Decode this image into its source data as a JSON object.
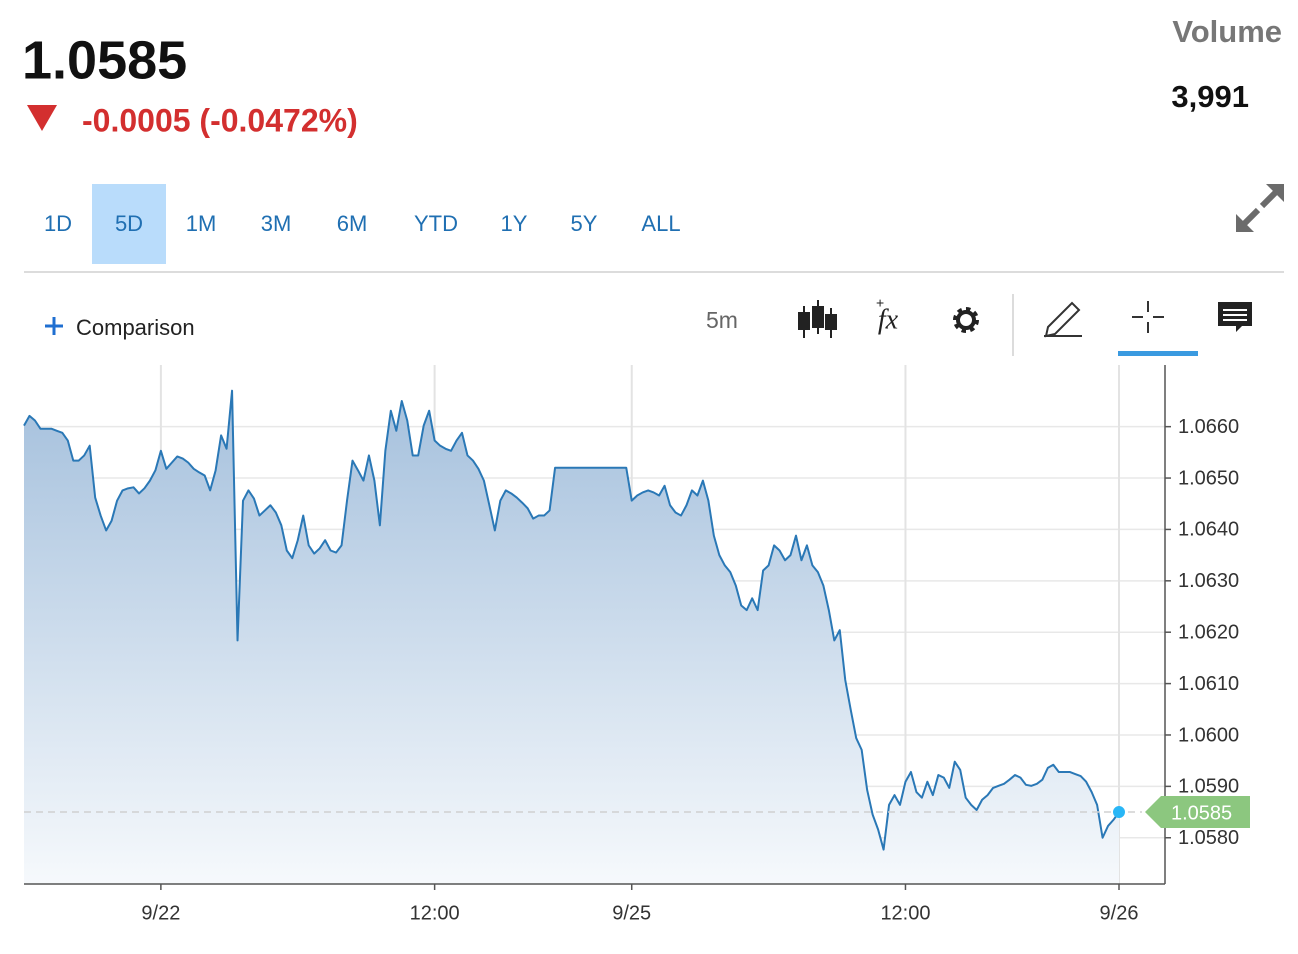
{
  "header": {
    "price": "1.0585",
    "change": "-0.0005 (-0.0472%)",
    "volume_label": "Volume",
    "volume": "3,991"
  },
  "range_tabs": [
    "1D",
    "5D",
    "1M",
    "3M",
    "6M",
    "YTD",
    "1Y",
    "5Y",
    "ALL"
  ],
  "selected_range": "5D",
  "toolbar": {
    "comparison": "Comparison",
    "interval": "5m",
    "function_icon": "fx"
  },
  "chart_data": {
    "type": "line",
    "area": true,
    "color": "#2a78b6",
    "grid": true,
    "categories": [
      null,
      null,
      null,
      null,
      null,
      null,
      null,
      null,
      null,
      null,
      null,
      null,
      null,
      null,
      null,
      null,
      null,
      null,
      null,
      null,
      null,
      null,
      null,
      null,
      null,
      "9/22",
      null,
      null,
      null,
      null,
      null,
      null,
      null,
      null,
      null,
      null,
      null,
      null,
      null,
      null,
      null,
      null,
      null,
      null,
      null,
      null,
      null,
      null,
      null,
      null,
      null,
      null,
      null,
      null,
      null,
      null,
      null,
      null,
      null,
      null,
      null,
      null,
      null,
      null,
      null,
      null,
      null,
      null,
      null,
      null,
      null,
      null,
      null,
      null,
      null,
      "12:00",
      null,
      null,
      null,
      null,
      null,
      null,
      null,
      null,
      null,
      null,
      null,
      null,
      null,
      null,
      null,
      null,
      null,
      null,
      null,
      null,
      null,
      null,
      null,
      null,
      null,
      null,
      null,
      null,
      null,
      null,
      null,
      null,
      null,
      null,
      null,
      "9/25",
      null,
      null,
      null,
      null,
      null,
      null,
      null,
      null,
      null,
      null,
      null,
      null,
      null,
      null,
      null,
      null,
      null,
      null,
      null,
      null,
      null,
      null,
      null,
      null,
      null,
      null,
      null,
      null,
      null,
      null,
      null,
      null,
      null,
      null,
      null,
      null,
      null,
      null,
      null,
      null,
      null,
      null,
      null,
      null,
      null,
      null,
      null,
      null,
      null,
      "12:00",
      null,
      null,
      null,
      null,
      null,
      null,
      null,
      null,
      null,
      null,
      null,
      null,
      null,
      null,
      null,
      null,
      null,
      null,
      null,
      null,
      null,
      null,
      null,
      null,
      null,
      null,
      null,
      null,
      null,
      null,
      null,
      null,
      null,
      null,
      null,
      null,
      null,
      null,
      "9/26"
    ],
    "values": [
      1.06602,
      1.06621,
      1.06612,
      1.06596,
      1.06596,
      1.06596,
      1.06592,
      1.06588,
      1.06573,
      1.06534,
      1.06534,
      1.06544,
      1.06563,
      1.06462,
      1.06427,
      1.06398,
      1.06417,
      1.06456,
      1.06476,
      1.0648,
      1.06482,
      1.0647,
      1.0648,
      1.06495,
      1.06515,
      1.06553,
      1.06518,
      1.0653,
      1.06542,
      1.06538,
      1.0653,
      1.06518,
      1.06511,
      1.06505,
      1.06476,
      1.06515,
      1.06583,
      1.06557,
      1.0667,
      1.06184,
      1.06456,
      1.06476,
      1.0646,
      1.06427,
      1.06437,
      1.06447,
      1.06433,
      1.06408,
      1.06359,
      1.06344,
      1.06379,
      1.06427,
      1.06369,
      1.06353,
      1.06363,
      1.06379,
      1.06359,
      1.06355,
      1.06369,
      1.06456,
      1.06534,
      1.06515,
      1.06495,
      1.06544,
      1.06495,
      1.06408,
      1.06553,
      1.06631,
      1.06592,
      1.0665,
      1.06612,
      1.06544,
      1.06544,
      1.06602,
      1.06631,
      1.06573,
      1.06563,
      1.06557,
      1.06553,
      1.06573,
      1.06588,
      1.06544,
      1.06534,
      1.06518,
      1.06495,
      1.06447,
      1.06398,
      1.06456,
      1.06476,
      1.0647,
      1.06462,
      1.06452,
      1.06441,
      1.06421,
      1.06427,
      1.06427,
      1.06437,
      1.0652,
      1.0652,
      1.0652,
      1.0652,
      1.0652,
      1.0652,
      1.0652,
      1.0652,
      1.0652,
      1.0652,
      1.0652,
      1.0652,
      1.0652,
      1.0652,
      1.06456,
      1.06466,
      1.06472,
      1.06476,
      1.06472,
      1.06466,
      1.06485,
      1.06447,
      1.06433,
      1.06427,
      1.06447,
      1.06476,
      1.06466,
      1.06495,
      1.06456,
      1.06388,
      1.0635,
      1.0633,
      1.06317,
      1.06291,
      1.06252,
      1.06243,
      1.06266,
      1.06243,
      1.0632,
      1.0633,
      1.06369,
      1.06359,
      1.0634,
      1.0635,
      1.06388,
      1.0634,
      1.06369,
      1.0633,
      1.06317,
      1.06291,
      1.06243,
      1.06184,
      1.06204,
      1.06107,
      1.06049,
      1.05994,
      1.05971,
      1.05893,
      1.05845,
      1.05816,
      1.05777,
      1.05864,
      1.05883,
      1.05864,
      1.05909,
      1.05928,
      1.05889,
      1.05878,
      1.05909,
      1.05883,
      1.05922,
      1.05917,
      1.05897,
      1.05948,
      1.05932,
      1.05878,
      1.05864,
      1.05854,
      1.05874,
      1.05883,
      1.05897,
      1.05901,
      1.05905,
      1.05913,
      1.05922,
      1.05917,
      1.05903,
      1.05901,
      1.05905,
      1.05913,
      1.05936,
      1.05942,
      1.05928,
      1.05928,
      1.05928,
      1.05924,
      1.0592,
      1.05909,
      1.05889,
      1.05864,
      1.058,
      1.05823,
      1.05835,
      1.0585
    ],
    "ylim": [
      1.0571,
      1.0672
    ],
    "yticks": [
      {
        "value": 1.058,
        "label": "1.0580"
      },
      {
        "value": 1.059,
        "label": "1.0590"
      },
      {
        "value": 1.06,
        "label": "1.0600"
      },
      {
        "value": 1.061,
        "label": "1.0610"
      },
      {
        "value": 1.062,
        "label": "1.0620"
      },
      {
        "value": 1.063,
        "label": "1.0630"
      },
      {
        "value": 1.064,
        "label": "1.0640"
      },
      {
        "value": 1.065,
        "label": "1.0650"
      },
      {
        "value": 1.066,
        "label": "1.0660"
      }
    ],
    "last_value_color": "#8cc77f"
  }
}
